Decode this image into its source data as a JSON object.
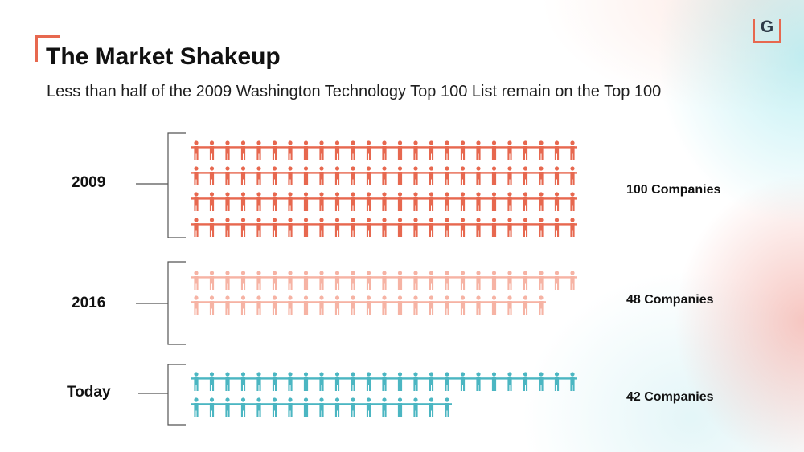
{
  "header": {
    "title": "The Market Shakeup",
    "subtitle": "Less than half of the 2009 Washington Technology Top 100 List remain on the Top 100"
  },
  "logo": {
    "letter": "G"
  },
  "colors": {
    "2009": "#e7684f",
    "2016": "#f6b3a4",
    "today": "#4bb6c2",
    "accent": "#e7684f",
    "bracket": "#555555"
  },
  "chart_data": {
    "type": "pictograph",
    "categories": [
      "2009",
      "2016",
      "Today"
    ],
    "values": [
      100,
      48,
      42
    ],
    "value_labels": [
      "100 Companies",
      "48 Companies",
      "42 Companies"
    ],
    "icon": "person-icon",
    "icons_per_row": 25
  }
}
